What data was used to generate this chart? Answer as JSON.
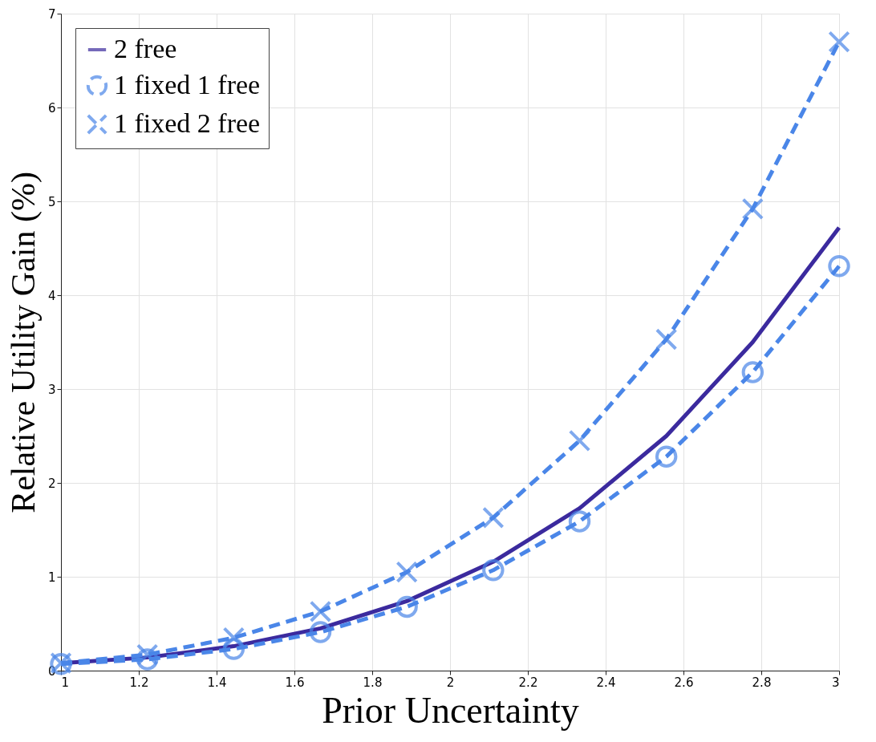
{
  "chart_data": {
    "type": "line",
    "xlabel": "Prior Uncertainty",
    "ylabel": "Relative Utility Gain (%)",
    "x": [
      1,
      1.222,
      1.444,
      1.667,
      1.889,
      2.111,
      2.333,
      2.556,
      2.778,
      3
    ],
    "series": [
      {
        "name": "2 free",
        "color": "#3b2a9e",
        "marker": "none",
        "line_style": "solid",
        "values": [
          0.08,
          0.14,
          0.26,
          0.45,
          0.74,
          1.16,
          1.73,
          2.5,
          3.5,
          4.72
        ]
      },
      {
        "name": "1 fixed 1 free",
        "color": "#4a86e8",
        "marker": "circle",
        "line_style": "dashed",
        "values": [
          0.07,
          0.12,
          0.23,
          0.41,
          0.68,
          1.07,
          1.59,
          2.28,
          3.18,
          4.31
        ]
      },
      {
        "name": "1 fixed 2 free",
        "color": "#4a86e8",
        "marker": "cross",
        "line_style": "dashed",
        "values": [
          0.08,
          0.17,
          0.35,
          0.63,
          1.05,
          1.63,
          2.45,
          3.53,
          4.92,
          6.7
        ]
      }
    ],
    "xlim": [
      1,
      3
    ],
    "xticks": [
      1,
      1.2,
      1.4,
      1.6,
      1.8,
      2,
      2.2,
      2.4,
      2.6,
      2.8,
      3
    ],
    "ylim": [
      0,
      7
    ],
    "yticks": [
      0,
      1,
      2,
      3,
      4,
      5,
      6,
      7
    ],
    "grid": true,
    "legend": "top left"
  }
}
